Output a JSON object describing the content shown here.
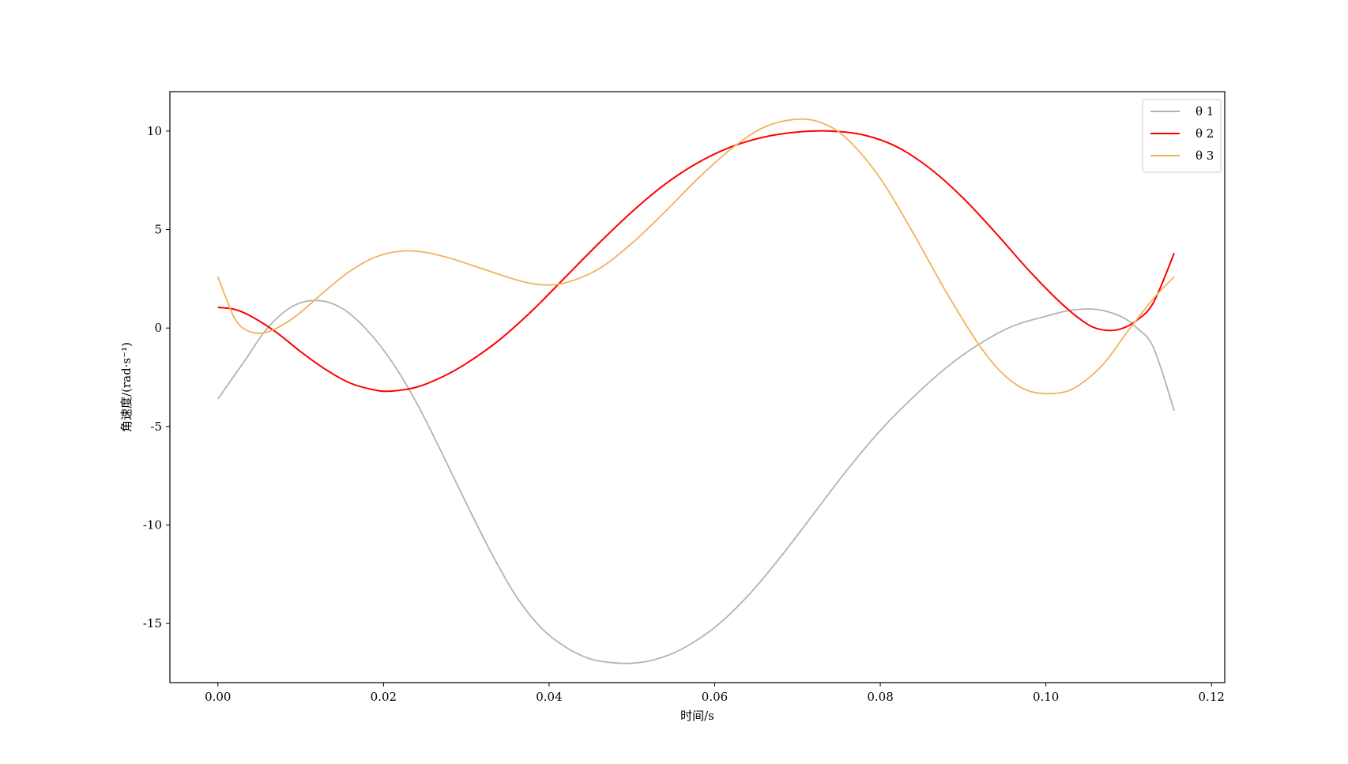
{
  "chart_data": {
    "type": "line",
    "title": "",
    "xlabel": "时间/s",
    "ylabel": "角速度/(rad·s⁻¹)",
    "xlim": [
      -0.0058,
      0.1216
    ],
    "ylim": [
      -18.0,
      12.0
    ],
    "xticks": [
      0.0,
      0.02,
      0.04,
      0.06,
      0.08,
      0.1,
      0.12
    ],
    "xtick_labels": [
      "0.00",
      "0.02",
      "0.04",
      "0.06",
      "0.08",
      "0.10",
      "0.12"
    ],
    "yticks": [
      10,
      5,
      0,
      -5,
      -10,
      -15
    ],
    "ytick_labels": [
      "10",
      "5",
      "0",
      "-5",
      "-10",
      "-15"
    ],
    "grid": false,
    "legend_position": "top-right",
    "series": [
      {
        "name": "θ 1",
        "color": "#b3b3b3",
        "points": [
          [
            0.0,
            -3.6
          ],
          [
            0.003,
            -1.8
          ],
          [
            0.006,
            0.0
          ],
          [
            0.009,
            1.1
          ],
          [
            0.012,
            1.4
          ],
          [
            0.015,
            1.0
          ],
          [
            0.018,
            -0.1
          ],
          [
            0.021,
            -1.7
          ],
          [
            0.024,
            -3.8
          ],
          [
            0.027,
            -6.3
          ],
          [
            0.03,
            -8.9
          ],
          [
            0.033,
            -11.4
          ],
          [
            0.036,
            -13.6
          ],
          [
            0.039,
            -15.2
          ],
          [
            0.042,
            -16.2
          ],
          [
            0.045,
            -16.8
          ],
          [
            0.048,
            -17.0
          ],
          [
            0.0505,
            -17.0
          ],
          [
            0.053,
            -16.8
          ],
          [
            0.056,
            -16.3
          ],
          [
            0.06,
            -15.2
          ],
          [
            0.064,
            -13.6
          ],
          [
            0.068,
            -11.6
          ],
          [
            0.072,
            -9.4
          ],
          [
            0.076,
            -7.2
          ],
          [
            0.08,
            -5.2
          ],
          [
            0.084,
            -3.5
          ],
          [
            0.088,
            -2.0
          ],
          [
            0.092,
            -0.8
          ],
          [
            0.096,
            0.1
          ],
          [
            0.1,
            0.6
          ],
          [
            0.103,
            0.9
          ],
          [
            0.106,
            0.95
          ],
          [
            0.109,
            0.6
          ],
          [
            0.111,
            0.0
          ],
          [
            0.113,
            -1.0
          ],
          [
            0.1155,
            -4.2
          ]
        ]
      },
      {
        "name": "θ 2",
        "color": "#ff0000",
        "points": [
          [
            0.0,
            1.05
          ],
          [
            0.002,
            0.95
          ],
          [
            0.004,
            0.6
          ],
          [
            0.007,
            -0.2
          ],
          [
            0.01,
            -1.2
          ],
          [
            0.013,
            -2.1
          ],
          [
            0.016,
            -2.8
          ],
          [
            0.019,
            -3.15
          ],
          [
            0.021,
            -3.2
          ],
          [
            0.024,
            -3.0
          ],
          [
            0.027,
            -2.5
          ],
          [
            0.03,
            -1.8
          ],
          [
            0.034,
            -0.6
          ],
          [
            0.038,
            0.9
          ],
          [
            0.042,
            2.6
          ],
          [
            0.046,
            4.3
          ],
          [
            0.05,
            5.9
          ],
          [
            0.054,
            7.3
          ],
          [
            0.058,
            8.4
          ],
          [
            0.062,
            9.2
          ],
          [
            0.066,
            9.7
          ],
          [
            0.07,
            9.95
          ],
          [
            0.074,
            10.0
          ],
          [
            0.078,
            9.8
          ],
          [
            0.082,
            9.2
          ],
          [
            0.086,
            8.1
          ],
          [
            0.09,
            6.6
          ],
          [
            0.094,
            4.8
          ],
          [
            0.098,
            2.9
          ],
          [
            0.102,
            1.2
          ],
          [
            0.105,
            0.2
          ],
          [
            0.107,
            -0.1
          ],
          [
            0.109,
            -0.05
          ],
          [
            0.111,
            0.4
          ],
          [
            0.113,
            1.3
          ],
          [
            0.1155,
            3.8
          ]
        ]
      },
      {
        "name": "θ 3",
        "color": "#f0b25c",
        "points": [
          [
            0.0,
            2.6
          ],
          [
            0.001,
            1.5
          ],
          [
            0.002,
            0.5
          ],
          [
            0.003,
            0.0
          ],
          [
            0.0045,
            -0.25
          ],
          [
            0.006,
            -0.2
          ],
          [
            0.008,
            0.2
          ],
          [
            0.01,
            0.8
          ],
          [
            0.013,
            1.9
          ],
          [
            0.016,
            2.9
          ],
          [
            0.019,
            3.6
          ],
          [
            0.022,
            3.9
          ],
          [
            0.025,
            3.85
          ],
          [
            0.028,
            3.55
          ],
          [
            0.032,
            3.0
          ],
          [
            0.036,
            2.45
          ],
          [
            0.039,
            2.2
          ],
          [
            0.042,
            2.3
          ],
          [
            0.046,
            3.0
          ],
          [
            0.05,
            4.3
          ],
          [
            0.054,
            5.9
          ],
          [
            0.058,
            7.6
          ],
          [
            0.062,
            9.1
          ],
          [
            0.066,
            10.2
          ],
          [
            0.07,
            10.6
          ],
          [
            0.073,
            10.4
          ],
          [
            0.076,
            9.6
          ],
          [
            0.08,
            7.6
          ],
          [
            0.084,
            4.8
          ],
          [
            0.088,
            1.8
          ],
          [
            0.092,
            -0.9
          ],
          [
            0.095,
            -2.4
          ],
          [
            0.098,
            -3.2
          ],
          [
            0.1015,
            -3.3
          ],
          [
            0.104,
            -2.9
          ],
          [
            0.107,
            -1.8
          ],
          [
            0.11,
            -0.1
          ],
          [
            0.113,
            1.5
          ],
          [
            0.1155,
            2.6
          ]
        ]
      }
    ]
  }
}
